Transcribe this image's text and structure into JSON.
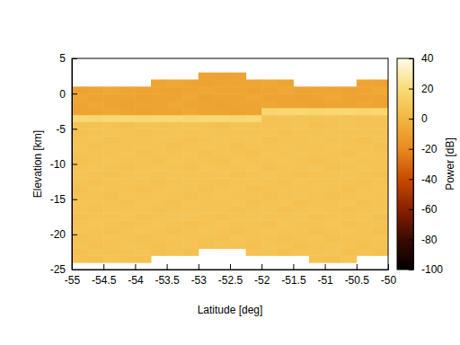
{
  "chart_data": {
    "type": "heatmap",
    "xlabel": "Latitude [deg]",
    "ylabel": "Elevation [km]",
    "colorbar_label": "Power [dB]",
    "xlim": [
      -55,
      -50
    ],
    "ylim": [
      -25,
      5
    ],
    "xticks": [
      -55,
      -54.5,
      -54,
      -53.5,
      -53,
      -52.5,
      -52,
      -51.5,
      -51,
      -50.5,
      -50
    ],
    "yticks": [
      -25,
      -20,
      -15,
      -10,
      -5,
      0,
      5
    ],
    "colorbar_range": [
      -100,
      40
    ],
    "colorbar_ticks": [
      -100,
      -80,
      -60,
      -40,
      -20,
      0,
      20,
      40
    ],
    "x_bins": [
      -55,
      -54.75,
      -54.5,
      -54.25,
      -54,
      -53.75,
      -53.5,
      -53.25,
      -53,
      -52.75,
      -52.5,
      -52.25,
      -52,
      -51.75,
      -51.5,
      -51.25,
      -51,
      -50.75,
      -50.5,
      -50.25,
      -50
    ],
    "y_bins": [
      -24,
      -23,
      -22,
      -21,
      -20,
      -19,
      -18,
      -17,
      -16,
      -15,
      -14,
      -13,
      -12,
      -11,
      -10,
      -9,
      -8,
      -7,
      -6,
      -5,
      -4,
      -3,
      -2,
      -1,
      0,
      1,
      2,
      3
    ],
    "z": [
      [
        7,
        6,
        8,
        7,
        6,
        null,
        null,
        null,
        null,
        null,
        null,
        null,
        null,
        null,
        null,
        7,
        6,
        8,
        null,
        null
      ],
      [
        6,
        8,
        7,
        7,
        8,
        6,
        7,
        6,
        null,
        null,
        null,
        7,
        8,
        6,
        7,
        7,
        8,
        6,
        7,
        6
      ],
      [
        7,
        6,
        7,
        8,
        7,
        6,
        7,
        8,
        6,
        7,
        7,
        6,
        8,
        7,
        6,
        7,
        8,
        7,
        6,
        7
      ],
      [
        6,
        7,
        8,
        7,
        6,
        7,
        8,
        7,
        7,
        6,
        8,
        7,
        7,
        6,
        7,
        8,
        6,
        7,
        7,
        8
      ],
      [
        8,
        7,
        6,
        7,
        8,
        7,
        6,
        7,
        8,
        7,
        6,
        7,
        8,
        7,
        7,
        6,
        7,
        8,
        7,
        6
      ],
      [
        7,
        8,
        7,
        6,
        7,
        8,
        7,
        6,
        7,
        8,
        7,
        7,
        6,
        8,
        7,
        7,
        8,
        6,
        7,
        7
      ],
      [
        6,
        7,
        7,
        8,
        6,
        7,
        8,
        8,
        7,
        6,
        7,
        8,
        7,
        7,
        8,
        6,
        7,
        7,
        8,
        6
      ],
      [
        7,
        6,
        8,
        7,
        7,
        6,
        7,
        7,
        8,
        7,
        6,
        7,
        8,
        6,
        7,
        8,
        7,
        6,
        7,
        8
      ],
      [
        8,
        7,
        7,
        6,
        8,
        7,
        6,
        8,
        7,
        7,
        8,
        6,
        7,
        8,
        6,
        7,
        7,
        8,
        6,
        7
      ],
      [
        7,
        7,
        6,
        8,
        7,
        8,
        7,
        6,
        7,
        8,
        7,
        7,
        6,
        7,
        8,
        7,
        6,
        7,
        8,
        7
      ],
      [
        6,
        8,
        7,
        7,
        6,
        7,
        8,
        7,
        6,
        7,
        8,
        6,
        7,
        7,
        7,
        8,
        7,
        6,
        7,
        8
      ],
      [
        7,
        6,
        7,
        8,
        7,
        6,
        7,
        8,
        7,
        6,
        7,
        8,
        7,
        6,
        8,
        7,
        8,
        7,
        6,
        7
      ],
      [
        8,
        7,
        6,
        7,
        8,
        7,
        8,
        7,
        7,
        8,
        6,
        7,
        8,
        7,
        6,
        7,
        7,
        8,
        7,
        6
      ],
      [
        7,
        8,
        7,
        6,
        7,
        8,
        7,
        6,
        8,
        7,
        7,
        8,
        6,
        7,
        7,
        8,
        6,
        7,
        8,
        7
      ],
      [
        6,
        7,
        8,
        7,
        7,
        6,
        8,
        7,
        7,
        6,
        8,
        7,
        7,
        8,
        7,
        6,
        7,
        8,
        7,
        7
      ],
      [
        7,
        7,
        7,
        8,
        6,
        7,
        7,
        8,
        6,
        7,
        7,
        6,
        8,
        7,
        8,
        7,
        7,
        6,
        8,
        7
      ],
      [
        8,
        6,
        7,
        7,
        8,
        7,
        6,
        7,
        8,
        7,
        6,
        7,
        7,
        8,
        7,
        7,
        8,
        7,
        7,
        6
      ],
      [
        7,
        8,
        6,
        7,
        7,
        8,
        7,
        6,
        7,
        8,
        7,
        8,
        6,
        7,
        7,
        8,
        7,
        7,
        6,
        8
      ],
      [
        6,
        7,
        8,
        7,
        6,
        7,
        8,
        7,
        8,
        7,
        7,
        7,
        8,
        6,
        7,
        7,
        8,
        7,
        8,
        7
      ],
      [
        7,
        7,
        7,
        6,
        8,
        7,
        7,
        8,
        7,
        6,
        8,
        7,
        7,
        7,
        8,
        6,
        7,
        8,
        7,
        7
      ],
      [
        18,
        17,
        18,
        18,
        17,
        18,
        18,
        17,
        18,
        18,
        17,
        18,
        7,
        8,
        7,
        7,
        8,
        7,
        7,
        8
      ],
      [
        -8,
        -8,
        -7,
        -8,
        -9,
        -8,
        -8,
        -7,
        -8,
        -8,
        -9,
        -8,
        17,
        18,
        18,
        17,
        18,
        18,
        17,
        18
      ],
      [
        -8,
        -7,
        -8,
        -9,
        -8,
        -8,
        -7,
        -8,
        -8,
        -9,
        -8,
        -8,
        -7,
        -8,
        -8,
        -9,
        -8,
        -8,
        -7,
        -8
      ],
      [
        -7,
        -8,
        -8,
        -8,
        -9,
        -8,
        -8,
        -7,
        -9,
        -8,
        -8,
        -7,
        -8,
        -8,
        -9,
        -8,
        -7,
        -8,
        -8,
        -8
      ],
      [
        -9,
        -8,
        -7,
        -8,
        -8,
        -8,
        -9,
        -8,
        -7,
        -8,
        -8,
        -9,
        -8,
        -7,
        -8,
        -8,
        -8,
        -9,
        -8,
        -7
      ],
      [
        null,
        null,
        null,
        null,
        null,
        -8,
        -7,
        -8,
        -9,
        -8,
        -8,
        -8,
        -7,
        -8,
        null,
        null,
        null,
        null,
        -8,
        -9
      ],
      [
        null,
        null,
        null,
        null,
        null,
        null,
        null,
        null,
        -8,
        -9,
        -8,
        null,
        null,
        null,
        null,
        null,
        null,
        null,
        null,
        null
      ]
    ]
  }
}
